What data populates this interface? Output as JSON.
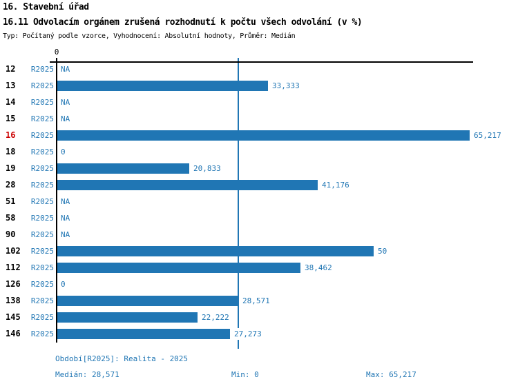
{
  "header": {
    "title": "16. Stavební úřad",
    "subtitle": "16.11 Odvolacím orgánem zrušená rozhodnutí k počtu všech odvolání (v %)",
    "meta": "Typ: Počítaný podle vzorce, Vyhodnocení: Absolutní hodnoty, Průměr: Medián"
  },
  "chart_data": {
    "type": "bar",
    "orientation": "horizontal",
    "title": "16.11 Odvolacím orgánem zrušená rozhodnutí k počtu všech odvolání (v %)",
    "categories": [
      "12",
      "13",
      "14",
      "15",
      "16",
      "18",
      "19",
      "28",
      "51",
      "58",
      "90",
      "102",
      "112",
      "126",
      "138",
      "145",
      "146"
    ],
    "series": [
      {
        "name": "R2025",
        "values": [
          null,
          33.333,
          null,
          null,
          65.217,
          0,
          20.833,
          41.176,
          null,
          null,
          null,
          50,
          38.462,
          0,
          28.571,
          22.222,
          27.273
        ]
      }
    ],
    "value_labels": [
      "NA",
      "33,333",
      "NA",
      "NA",
      "65,217",
      "0",
      "20,833",
      "41,176",
      "NA",
      "NA",
      "NA",
      "50",
      "38,462",
      "0",
      "28,571",
      "22,222",
      "27,273"
    ],
    "highlighted_category": "16",
    "xlim": [
      0,
      65.217
    ],
    "x_tick_labels": [
      "0"
    ],
    "median_value": 28.571,
    "grid": false,
    "legend_position": "none",
    "bar_color": "#2076B4",
    "highlight_color": "#CC0000"
  },
  "footer": {
    "period": "Období[R2025]: Realita - 2025",
    "median": "Medián: 28,571",
    "min": "Min: 0",
    "max": "Max: 65,217"
  }
}
